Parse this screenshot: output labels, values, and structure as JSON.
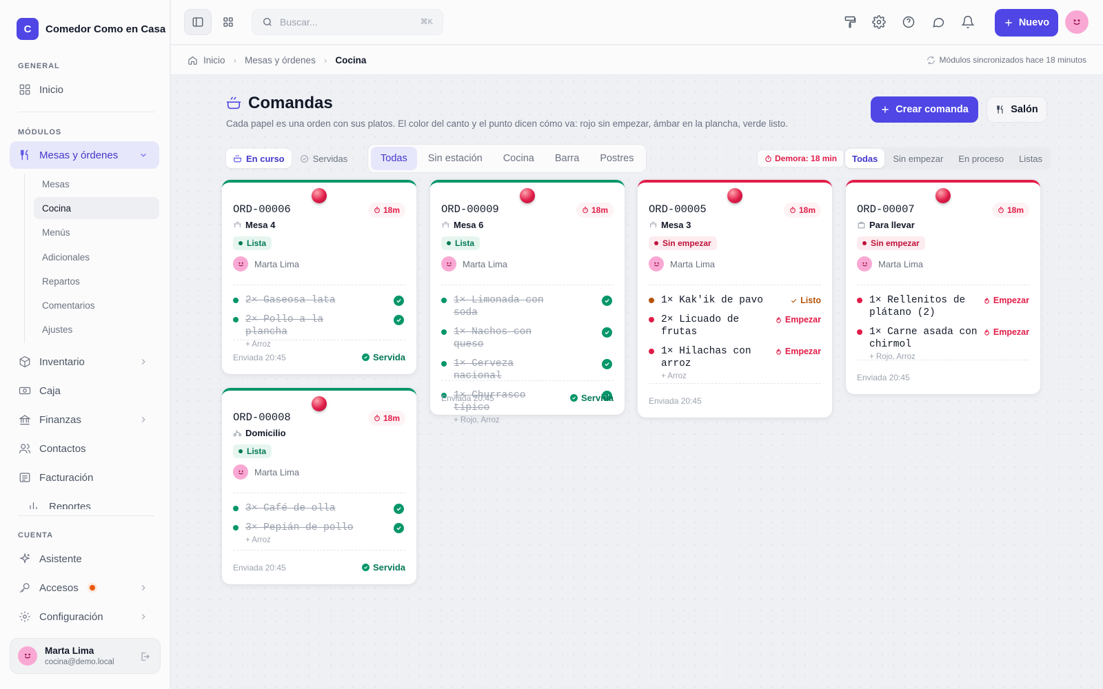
{
  "brand": {
    "initial": "C",
    "name": "Comedor Como en Casa"
  },
  "sidebar": {
    "general_label": "GENERAL",
    "inicio": "Inicio",
    "modules_label": "MÓDULOS",
    "mesas": "Mesas y órdenes",
    "sub": [
      "Mesas",
      "Cocina",
      "Menús",
      "Adicionales",
      "Repartos",
      "Comentarios",
      "Ajustes"
    ],
    "inventario": "Inventario",
    "caja": "Caja",
    "finanzas": "Finanzas",
    "contactos": "Contactos",
    "facturacion": "Facturación",
    "reportes": "Reportes",
    "account_label": "CUENTA",
    "asistente": "Asistente",
    "accesos": "Accesos",
    "configuracion": "Configuración",
    "user": {
      "name": "Marta Lima",
      "email": "cocina@demo.local"
    }
  },
  "topbar": {
    "search_placeholder": "Buscar...",
    "shortcut": "⌘K",
    "new_label": "Nuevo"
  },
  "breadcrumb": {
    "home": "Inicio",
    "section": "Mesas y órdenes",
    "current": "Cocina",
    "sync": "Módulos sincronizados hace 18 minutos"
  },
  "page": {
    "title": "Comandas",
    "description": "Cada papel es una orden con sus platos. El color del canto y el punto dicen cómo va: rojo sin empezar, ámbar en la plancha, verde listo.",
    "create_label": "Crear comanda",
    "salon_label": "Salón"
  },
  "filters": {
    "state": [
      "En curso",
      "Servidas"
    ],
    "stations": [
      "Todas",
      "Sin estación",
      "Cocina",
      "Barra",
      "Postres"
    ],
    "delay": "Demora: 18 min",
    "progress": [
      "Todas",
      "Sin empezar",
      "En proceso",
      "Listas"
    ]
  },
  "colors": {
    "accent": "#4f46e5",
    "ok": "#059669",
    "bad": "#e11d48",
    "amber": "#b45309"
  },
  "cards": [
    {
      "id": "ORD-00006",
      "time": "18m",
      "table": "Mesa 4",
      "status": "Lista",
      "waiter": "Marta Lima",
      "items": [
        {
          "name": "2× Gaseosa lata",
          "mods": ""
        },
        {
          "name": "2× Pollo a la plancha",
          "mods": "+ Arroz"
        }
      ],
      "sent": "Enviada 20:45",
      "served": "Servida"
    },
    {
      "id": "ORD-00008",
      "time": "18m",
      "table": "Domicilio",
      "status": "Lista",
      "waiter": "Marta Lima",
      "items": [
        {
          "name": "3× Café de olla",
          "mods": ""
        },
        {
          "name": "3× Pepián de pollo",
          "mods": "+ Arroz"
        }
      ],
      "sent": "Enviada 20:45",
      "served": "Servida"
    },
    {
      "id": "ORD-00009",
      "time": "18m",
      "table": "Mesa 6",
      "status": "Lista",
      "waiter": "Marta Lima",
      "items": [
        {
          "name": "1× Limonada con soda",
          "mods": ""
        },
        {
          "name": "1× Nachos con queso",
          "mods": ""
        },
        {
          "name": "1× Cerveza nacional",
          "mods": ""
        },
        {
          "name": "1× Churrasco típico",
          "mods": "+ Rojo, Arroz"
        }
      ],
      "sent": "Enviada 20:45",
      "served": "Servida"
    },
    {
      "id": "ORD-00005",
      "time": "18m",
      "table": "Mesa 3",
      "status": "Sin empezar",
      "waiter": "Marta Lima",
      "items": [
        {
          "name": "1× Kak'ik de pavo",
          "mods": "",
          "action": "Listo"
        },
        {
          "name": "2× Licuado de frutas",
          "mods": "",
          "action": "Empezar"
        },
        {
          "name": "1× Hilachas con arroz",
          "mods": "+ Arroz",
          "action": "Empezar"
        }
      ],
      "sent": "Enviada 20:45"
    },
    {
      "id": "ORD-00007",
      "time": "18m",
      "table": "Para llevar",
      "status": "Sin empezar",
      "waiter": "Marta Lima",
      "items": [
        {
          "name": "1× Rellenitos de plátano (2)",
          "mods": "",
          "action": "Empezar"
        },
        {
          "name": "1× Carne asada con chirmol",
          "mods": "+ Rojo, Arroz",
          "action": "Empezar"
        }
      ],
      "sent": "Enviada 20:45"
    }
  ]
}
